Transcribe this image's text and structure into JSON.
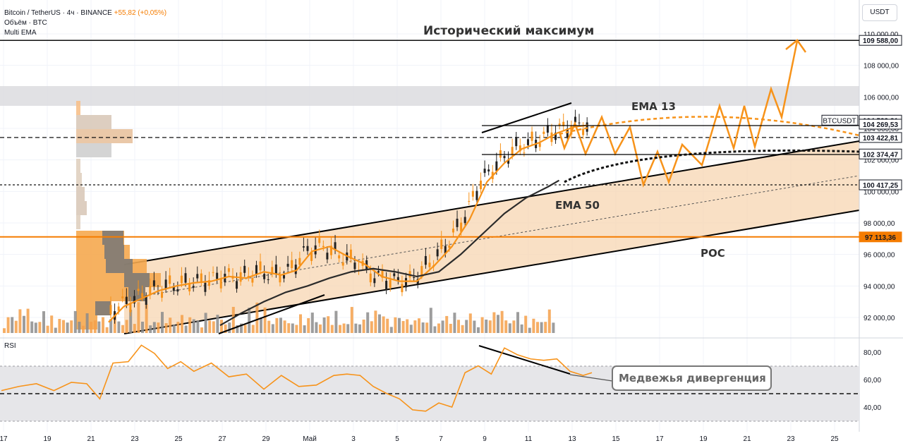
{
  "header": {
    "symbol": "Bitcoin / TetherUS · 4ч · BINANCE",
    "change": "+55,82 (+0,05%)",
    "volume_label": "Объём · BTC",
    "indicator_label": "Multi EMA",
    "rsi_label": "RSI"
  },
  "currency": "USDT",
  "colors": {
    "price_line": "#f7931a",
    "channel_fill": "#f7d9b9",
    "resistance_band": "#e0e0e3",
    "poc_line": "#f57c00",
    "ema50": "#2b2b2b",
    "ath_line": "#131722",
    "volume_up": "#f5a04a",
    "volume_down": "#8c8c8c"
  },
  "annotations": {
    "ath": "Исторический максимум",
    "ema13": "EMA 13",
    "ema50": "EMA 50",
    "poc": "POC",
    "divergence": "Медвежья дивергенция"
  },
  "chart_data": [
    {
      "type": "line",
      "title": "Bitcoin / TetherUS · 4ч · BINANCE",
      "x_ticks": [
        "17",
        "19",
        "21",
        "23",
        "25",
        "27",
        "29",
        "Май",
        "3",
        "5",
        "7",
        "9",
        "11",
        "13",
        "15",
        "17",
        "19",
        "21",
        "23",
        "25"
      ],
      "y_ticks": [
        110000,
        108000,
        106000,
        104000,
        102000,
        100000,
        98000,
        96000,
        94000,
        92000
      ],
      "y_tick_labels": [
        "110 000,00",
        "108 000,00",
        "106 000,00",
        "104 000,00",
        "102 000,00",
        "100 000,00",
        "98 000,00",
        "96 000,00",
        "94 000,00",
        "92 000,00"
      ],
      "ylim": [
        91000,
        111000
      ],
      "price_labels": [
        {
          "value": 109588,
          "label": "109 588,00",
          "style": "dark"
        },
        {
          "value": 104523.81,
          "label": "104 523,81",
          "style": "dark",
          "tag": "BTCUSDT"
        },
        {
          "value": 104269.53,
          "label": "104 269,53",
          "style": "light"
        },
        {
          "value": 103422.81,
          "label": "103 422,81",
          "style": "light"
        },
        {
          "value": 102374.47,
          "label": "102 374,47",
          "style": "dark"
        },
        {
          "value": 100417.25,
          "label": "100 417,25",
          "style": "light"
        },
        {
          "value": 97113.36,
          "label": "97 113,36",
          "style": "orange"
        }
      ],
      "horizontal_levels": [
        109588,
        104269.53,
        103422.81,
        102374.47,
        100417.25,
        97113.36
      ],
      "resistance_zone": [
        105600,
        106800
      ],
      "series": [
        {
          "name": "EMA 13",
          "x": [
            20.9,
            21.6,
            22.4,
            23.2,
            24.0,
            24.8,
            25.6,
            26.4,
            27.2,
            28.0,
            28.8,
            29.5,
            30.2,
            31.0,
            31.8,
            32.6,
            33.4,
            34.2,
            35.0,
            35.8,
            36.6,
            37.4,
            38.2,
            39.0,
            39.8,
            40.6,
            41.4,
            42.2,
            42.8
          ],
          "values": [
            91700,
            92700,
            93200,
            93700,
            94000,
            94200,
            94300,
            94600,
            94500,
            94900,
            94700,
            95000,
            96200,
            96500,
            95900,
            95400,
            94600,
            94300,
            94300,
            95300,
            96500,
            98200,
            100600,
            101800,
            102700,
            103100,
            103700,
            104100,
            104200
          ]
        },
        {
          "name": "EMA 50",
          "x": [
            26.0,
            27.0,
            28.0,
            29.0,
            30.0,
            31.0,
            32.0,
            33.0,
            34.0,
            35.0,
            36.0,
            37.0,
            38.0,
            39.0,
            40.0,
            41.0,
            41.5
          ],
          "values": [
            91500,
            92300,
            93000,
            93600,
            94000,
            94500,
            94900,
            95100,
            94900,
            94600,
            94900,
            96000,
            97300,
            98600,
            99600,
            100300,
            100700
          ]
        }
      ]
    },
    {
      "type": "line",
      "title": "RSI",
      "y_ticks": [
        80,
        60,
        40
      ],
      "y_tick_labels": [
        "80,00",
        "60,00",
        "40,00"
      ],
      "ylim": [
        28,
        90
      ],
      "band": [
        30,
        70
      ],
      "midline": 50,
      "series": [
        {
          "name": "RSI",
          "x": [
            16.0,
            16.8,
            17.6,
            18.4,
            19.2,
            19.9,
            20.5,
            21.1,
            21.8,
            22.4,
            23.0,
            23.6,
            24.2,
            24.8,
            25.6,
            26.4,
            27.2,
            28.0,
            28.8,
            29.6,
            30.4,
            31.2,
            31.8,
            32.4,
            33.0,
            33.6,
            34.2,
            34.8,
            35.4,
            36.0,
            36.6,
            37.2,
            37.8,
            38.4,
            39.0,
            39.6,
            40.2,
            40.8,
            41.4,
            42.0,
            42.6,
            43.0
          ],
          "values": [
            52,
            55,
            57,
            52,
            58,
            57,
            46,
            72,
            73,
            85,
            79,
            68,
            73,
            66,
            72,
            62,
            64,
            53,
            63,
            55,
            56,
            63,
            64,
            63,
            55,
            50,
            46,
            38,
            37,
            43,
            40,
            65,
            70,
            64,
            83,
            78,
            75,
            74,
            75,
            66,
            63,
            65
          ]
        }
      ]
    },
    {
      "type": "bar",
      "title": "Объём · BTC",
      "values_relative": [
        0.3,
        0.5,
        0.8,
        0.4,
        1.0,
        0.6,
        0.9,
        0.45,
        0.35,
        0.5,
        0.7,
        0.4,
        0.55,
        0.3,
        0.45,
        0.6,
        0.35,
        0.5,
        0.8,
        0.4,
        0.3,
        0.65,
        0.55,
        0.4,
        0.7,
        0.5,
        0.3,
        0.45,
        0.85,
        0.4
      ]
    }
  ]
}
